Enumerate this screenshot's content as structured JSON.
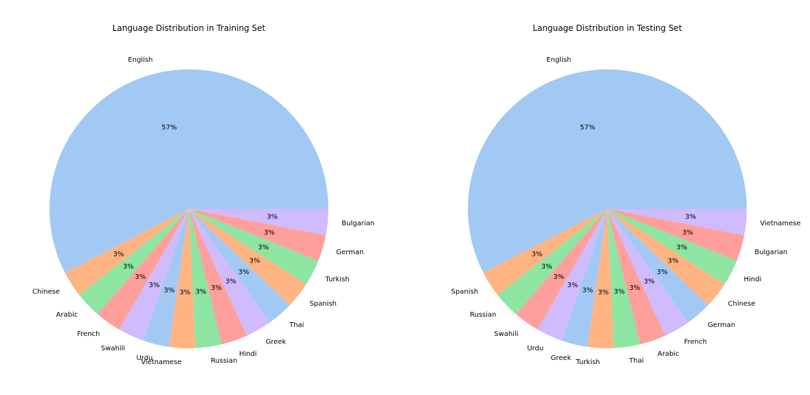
{
  "palette": [
    "#a1c9f4",
    "#ffb482",
    "#8de5a1",
    "#ff9f9b",
    "#d0bbff"
  ],
  "chart_data": [
    {
      "type": "pie",
      "title": "Language Distribution in Training Set",
      "start_angle_deg": 0,
      "direction": "counterclockwise",
      "slices": [
        {
          "label": "English",
          "value": 57,
          "pct_label": "57%"
        },
        {
          "label": "Chinese",
          "value": 3,
          "pct_label": "3%"
        },
        {
          "label": "Arabic",
          "value": 3,
          "pct_label": "3%"
        },
        {
          "label": "French",
          "value": 3,
          "pct_label": "3%"
        },
        {
          "label": "Swahili",
          "value": 3,
          "pct_label": "3%"
        },
        {
          "label": "Urdu",
          "value": 3,
          "pct_label": "3%"
        },
        {
          "label": "Vietnamese",
          "value": 3,
          "pct_label": "3%"
        },
        {
          "label": "Russian",
          "value": 3,
          "pct_label": "3%"
        },
        {
          "label": "Hindi",
          "value": 3,
          "pct_label": "3%"
        },
        {
          "label": "Greek",
          "value": 3,
          "pct_label": "3%"
        },
        {
          "label": "Thai",
          "value": 3,
          "pct_label": "3%"
        },
        {
          "label": "Spanish",
          "value": 3,
          "pct_label": "3%"
        },
        {
          "label": "Turkish",
          "value": 3,
          "pct_label": "3%"
        },
        {
          "label": "German",
          "value": 3,
          "pct_label": "3%"
        },
        {
          "label": "Bulgarian",
          "value": 3,
          "pct_label": "3%"
        }
      ]
    },
    {
      "type": "pie",
      "title": "Language Distribution in Testing Set",
      "start_angle_deg": 0,
      "direction": "counterclockwise",
      "slices": [
        {
          "label": "English",
          "value": 57,
          "pct_label": "57%"
        },
        {
          "label": "Spanish",
          "value": 3,
          "pct_label": "3%"
        },
        {
          "label": "Russian",
          "value": 3,
          "pct_label": "3%"
        },
        {
          "label": "Swahili",
          "value": 3,
          "pct_label": "3%"
        },
        {
          "label": "Urdu",
          "value": 3,
          "pct_label": "3%"
        },
        {
          "label": "Greek",
          "value": 3,
          "pct_label": "3%"
        },
        {
          "label": "Turkish",
          "value": 3,
          "pct_label": "3%"
        },
        {
          "label": "Thai",
          "value": 3,
          "pct_label": "3%"
        },
        {
          "label": "Arabic",
          "value": 3,
          "pct_label": "3%"
        },
        {
          "label": "French",
          "value": 3,
          "pct_label": "3%"
        },
        {
          "label": "German",
          "value": 3,
          "pct_label": "3%"
        },
        {
          "label": "Chinese",
          "value": 3,
          "pct_label": "3%"
        },
        {
          "label": "Hindi",
          "value": 3,
          "pct_label": "3%"
        },
        {
          "label": "Bulgarian",
          "value": 3,
          "pct_label": "3%"
        },
        {
          "label": "Vietnamese",
          "value": 3,
          "pct_label": "3%"
        }
      ]
    }
  ]
}
